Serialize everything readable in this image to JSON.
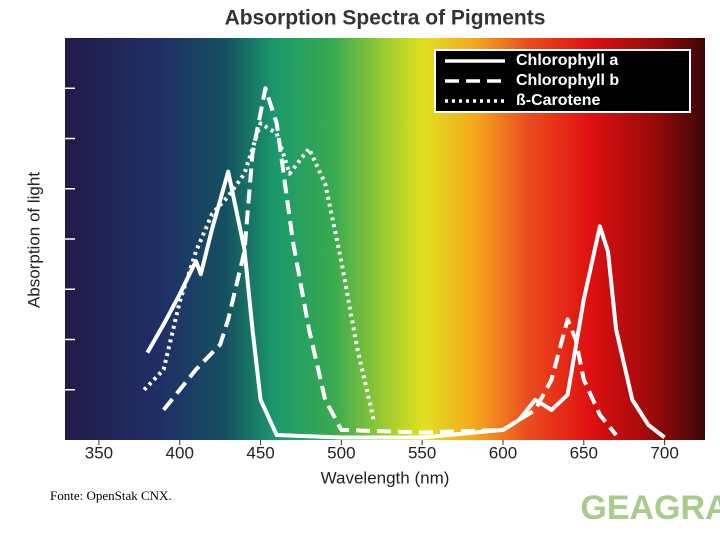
{
  "chart_data": {
    "type": "line",
    "title": "Absorption Spectra of Pigments",
    "x_label": "Wavelength (nm)",
    "y_label": "Absorption of light",
    "xlim": [
      329,
      725
    ],
    "xticks": [
      350,
      400,
      450,
      500,
      550,
      600,
      650,
      700
    ],
    "ylim": [
      0,
      8
    ],
    "yticks": [
      1,
      2,
      3,
      4,
      5,
      6,
      7
    ],
    "legend": "upper right",
    "series": [
      {
        "name": "Chlorophyll a",
        "color": "#ffffff",
        "dash": "solid",
        "x": [
          380,
          390,
          400,
          410,
          413,
          420,
          430,
          440,
          445,
          450,
          460,
          500,
          550,
          600,
          610,
          620,
          630,
          640,
          650,
          660,
          665,
          670,
          680,
          690,
          700
        ],
        "values": [
          1.74,
          2.3,
          2.9,
          3.56,
          3.3,
          4.2,
          5.34,
          3.8,
          2.2,
          0.8,
          0.1,
          0.05,
          0.05,
          0.2,
          0.4,
          0.8,
          0.6,
          0.9,
          2.8,
          4.25,
          3.75,
          2.2,
          0.8,
          0.3,
          0.05
        ]
      },
      {
        "name": "Chlorophyll b",
        "color": "#ffffff",
        "dash": "dashed",
        "x": [
          390,
          410,
          425,
          430,
          440,
          445,
          453,
          460,
          470,
          480,
          490,
          500,
          550,
          600,
          620,
          630,
          640,
          645,
          650,
          660,
          670
        ],
        "values": [
          0.6,
          1.4,
          1.9,
          2.4,
          3.75,
          5.7,
          7.0,
          6.3,
          3.95,
          2.2,
          0.8,
          0.2,
          0.15,
          0.2,
          0.6,
          1.2,
          2.4,
          2.0,
          1.2,
          0.5,
          0.1
        ]
      },
      {
        "name": "ß-Carotene",
        "color": "#ffffff",
        "dash": "dotted",
        "x": [
          378,
          390,
          400,
          410,
          420,
          430,
          440,
          450,
          460,
          468,
          480,
          490,
          500,
          510,
          520
        ],
        "values": [
          1.0,
          1.4,
          2.75,
          3.75,
          4.5,
          4.85,
          5.3,
          6.3,
          6.1,
          5.3,
          5.8,
          5.1,
          3.55,
          1.8,
          0.4
        ]
      }
    ]
  },
  "source": "Fonte: OpenStak CNX.",
  "logo": "GEAGRA"
}
